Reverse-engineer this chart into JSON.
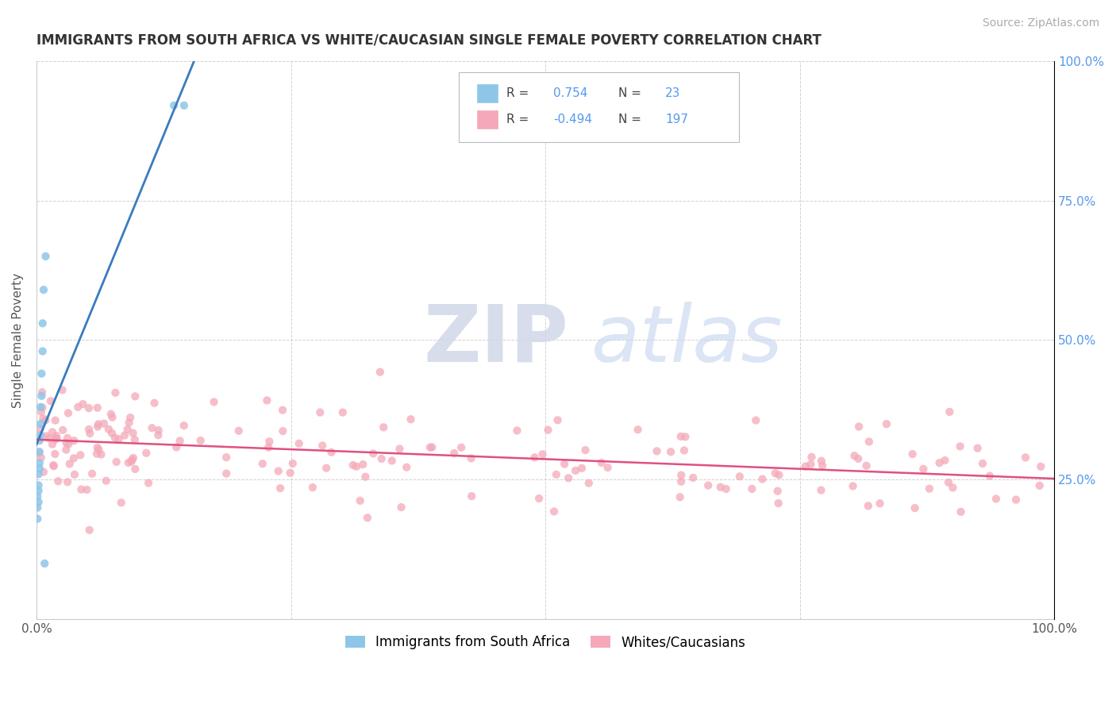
{
  "title": "IMMIGRANTS FROM SOUTH AFRICA VS WHITE/CAUCASIAN SINGLE FEMALE POVERTY CORRELATION CHART",
  "source": "Source: ZipAtlas.com",
  "ylabel": "Single Female Poverty",
  "watermark_zip": "ZIP",
  "watermark_atlas": "atlas",
  "blue_R": 0.754,
  "blue_N": 23,
  "pink_R": -0.494,
  "pink_N": 197,
  "blue_color": "#8ec6e8",
  "pink_color": "#f4a8b8",
  "blue_line_color": "#3a7bbf",
  "pink_line_color": "#e05080",
  "legend_blue_label": "Immigrants from South Africa",
  "legend_pink_label": "Whites/Caucasians",
  "xlim": [
    0,
    1.0
  ],
  "ylim": [
    0,
    1.0
  ],
  "right_tick_color": "#5599ee",
  "blue_x": [
    0.001,
    0.001,
    0.001,
    0.002,
    0.002,
    0.002,
    0.002,
    0.003,
    0.003,
    0.003,
    0.003,
    0.004,
    0.004,
    0.004,
    0.005,
    0.005,
    0.006,
    0.006,
    0.007,
    0.008,
    0.009,
    0.135,
    0.145
  ],
  "blue_y": [
    0.18,
    0.2,
    0.22,
    0.21,
    0.23,
    0.24,
    0.26,
    0.27,
    0.28,
    0.3,
    0.32,
    0.33,
    0.35,
    0.38,
    0.4,
    0.44,
    0.48,
    0.53,
    0.59,
    0.1,
    0.65,
    0.92,
    0.92
  ],
  "pink_seed": 42
}
